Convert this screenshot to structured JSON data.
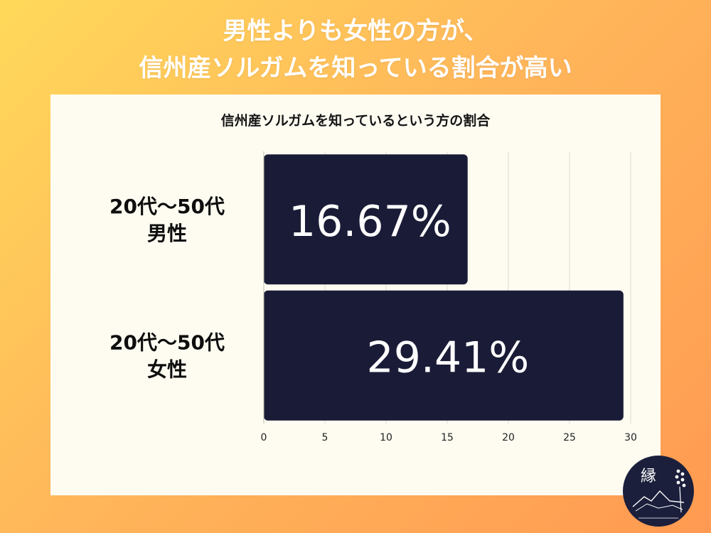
{
  "headline": {
    "line1": "男性よりも女性の方が、",
    "line2": "信州産ソルガムを知っている割合が高い"
  },
  "colors": {
    "background_start": "#ffd95a",
    "background_end": "#ff9a52",
    "panel": "#fefcf1",
    "bar": "#1a1c37",
    "bar_label": "#ffffff"
  },
  "chart_data": {
    "type": "bar",
    "orientation": "horizontal",
    "title": "信州産ソルガムを知っているという方の割合",
    "categories": [
      [
        "20代〜50代",
        "男性"
      ],
      [
        "20代〜50代",
        "女性"
      ]
    ],
    "values": [
      16.67,
      29.41
    ],
    "value_labels": [
      "16.67%",
      "29.41%"
    ],
    "xlim": [
      0,
      30
    ],
    "xticks": [
      0,
      5,
      10,
      15,
      20,
      25,
      30
    ],
    "grid": true
  },
  "badge": {
    "icon": "yukari-sorghum-logo-icon"
  }
}
